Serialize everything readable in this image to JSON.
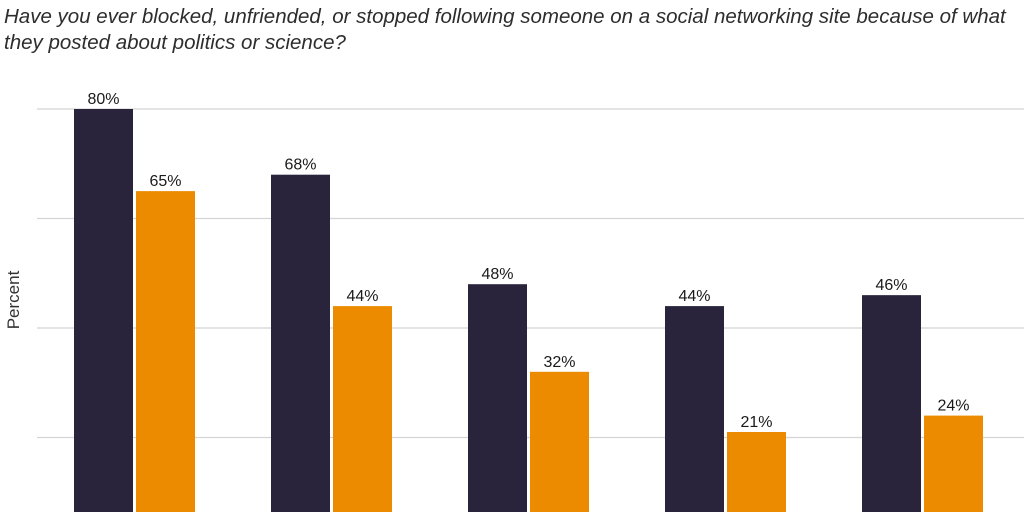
{
  "chart_data": {
    "type": "bar",
    "title": "Have you ever blocked, unfriended, or stopped following someone on a social networking site because of what they posted about politics or science?",
    "xlabel": "",
    "ylabel": "Percent",
    "categories": [
      "",
      "",
      "",
      "",
      ""
    ],
    "series": [
      {
        "values": [
          80,
          68,
          48,
          44,
          46
        ],
        "color": "#29233b"
      },
      {
        "values": [
          65,
          44,
          32,
          21,
          24
        ],
        "color": "#ec8a00"
      }
    ],
    "data_labels": [
      [
        "80%",
        "68%",
        "48%",
        "44%",
        "46%"
      ],
      [
        "65%",
        "44%",
        "32%",
        "21%",
        "24%"
      ]
    ],
    "ylim": [
      0,
      80
    ],
    "gridlines": [
      20,
      40,
      60,
      80
    ],
    "grid": true
  }
}
